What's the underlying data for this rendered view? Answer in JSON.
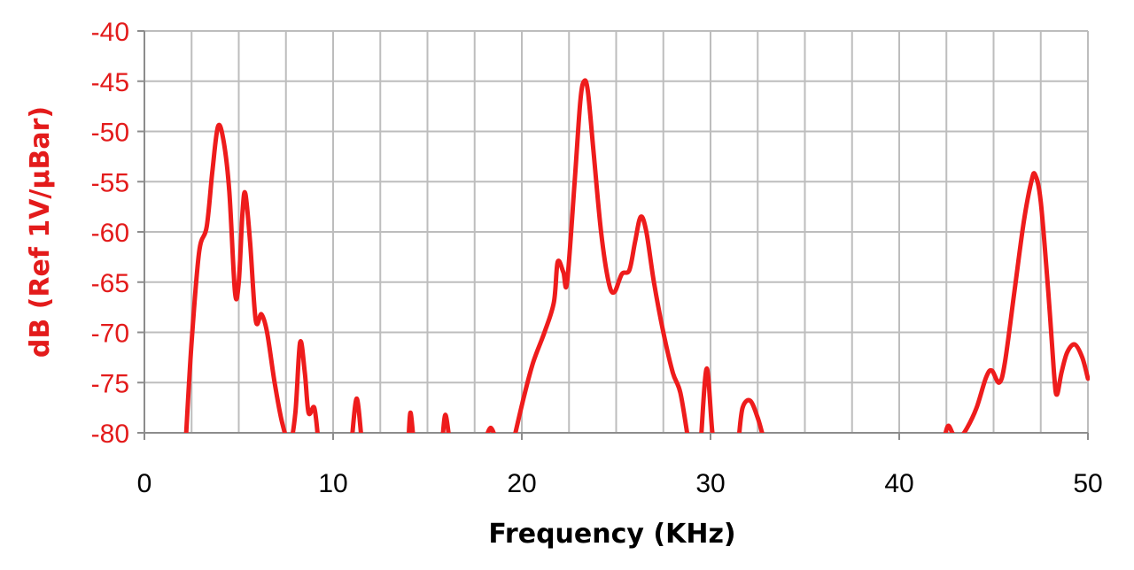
{
  "chart_data": {
    "type": "line",
    "title": "",
    "xlabel": "Frequency (KHz)",
    "ylabel": "dB (Ref 1V/μBar)",
    "xlim": [
      0,
      50
    ],
    "ylim": [
      -80,
      -40
    ],
    "x_ticks": [
      "0",
      "10",
      "20",
      "30",
      "40",
      "50"
    ],
    "y_ticks": [
      "-40",
      "-45",
      "-50",
      "-55",
      "-60",
      "-65",
      "-70",
      "-75",
      "-80"
    ],
    "grid": true,
    "legend": "none",
    "colors": {
      "series": "#ee1c1c",
      "ylabel": "#e31b1b",
      "grid": "#bdbdbd",
      "axis": "#8c8c8c"
    },
    "series": [
      {
        "points": [
          [
            2.2,
            -80.5
          ],
          [
            2.5,
            -71
          ],
          [
            2.9,
            -62
          ],
          [
            3.3,
            -59.5
          ],
          [
            3.6,
            -54
          ],
          [
            3.9,
            -49.5
          ],
          [
            4.2,
            -51
          ],
          [
            4.5,
            -56
          ],
          [
            4.8,
            -66
          ],
          [
            5.0,
            -65
          ],
          [
            5.2,
            -58
          ],
          [
            5.35,
            -56.2
          ],
          [
            5.6,
            -61
          ],
          [
            5.9,
            -68.8
          ],
          [
            6.2,
            -68.2
          ],
          [
            6.5,
            -70
          ],
          [
            6.9,
            -75
          ],
          [
            7.3,
            -79
          ],
          [
            7.7,
            -81
          ],
          [
            8.0,
            -78
          ],
          [
            8.25,
            -71
          ],
          [
            8.5,
            -74
          ],
          [
            8.7,
            -78
          ],
          [
            9.0,
            -77.5
          ],
          [
            9.2,
            -80.5
          ],
          null,
          [
            11.0,
            -80.5
          ],
          [
            11.25,
            -76.6
          ],
          [
            11.5,
            -80.5
          ],
          null,
          [
            14.0,
            -80.5
          ],
          [
            14.1,
            -78
          ],
          [
            14.25,
            -80.5
          ],
          null,
          [
            15.8,
            -80.5
          ],
          [
            15.95,
            -78.2
          ],
          [
            16.15,
            -80.5
          ],
          null,
          [
            18.1,
            -80.5
          ],
          [
            18.35,
            -79.5
          ],
          [
            18.6,
            -80.5
          ],
          null,
          [
            19.6,
            -80.5
          ],
          [
            20.1,
            -76.5
          ],
          [
            20.6,
            -73
          ],
          [
            21.2,
            -70
          ],
          [
            21.7,
            -67
          ],
          [
            21.9,
            -63
          ],
          [
            22.2,
            -64
          ],
          [
            22.4,
            -65
          ],
          [
            22.8,
            -55
          ],
          [
            23.1,
            -47
          ],
          [
            23.3,
            -45
          ],
          [
            23.5,
            -46
          ],
          [
            23.8,
            -52
          ],
          [
            24.2,
            -60
          ],
          [
            24.6,
            -65
          ],
          [
            24.9,
            -66
          ],
          [
            25.3,
            -64.2
          ],
          [
            25.7,
            -63.8
          ],
          [
            26.0,
            -61
          ],
          [
            26.3,
            -58.5
          ],
          [
            26.6,
            -60
          ],
          [
            27.0,
            -65
          ],
          [
            27.5,
            -70
          ],
          [
            28.0,
            -74
          ],
          [
            28.4,
            -76
          ],
          [
            28.8,
            -80.5
          ],
          null,
          [
            29.5,
            -80.5
          ],
          [
            29.8,
            -73.6
          ],
          [
            30.1,
            -80
          ],
          [
            30.3,
            -80.5
          ],
          null,
          [
            31.5,
            -80.5
          ],
          [
            31.7,
            -77.5
          ],
          [
            32.1,
            -76.8
          ],
          [
            32.5,
            -78.5
          ],
          [
            32.8,
            -80.5
          ],
          null,
          [
            42.4,
            -80.5
          ],
          [
            42.6,
            -79.3
          ],
          [
            42.9,
            -80.3
          ],
          [
            43.2,
            -80.5
          ],
          [
            43.6,
            -79.5
          ],
          [
            44.1,
            -77.5
          ],
          [
            44.6,
            -74.5
          ],
          [
            44.9,
            -73.8
          ],
          [
            45.3,
            -75
          ],
          [
            45.6,
            -73
          ],
          [
            46.1,
            -66
          ],
          [
            46.6,
            -59
          ],
          [
            47.0,
            -55
          ],
          [
            47.2,
            -54.3
          ],
          [
            47.5,
            -57
          ],
          [
            47.9,
            -66
          ],
          [
            48.2,
            -74
          ],
          [
            48.35,
            -76.2
          ],
          [
            48.6,
            -74
          ],
          [
            48.9,
            -72
          ],
          [
            49.3,
            -71.2
          ],
          [
            49.7,
            -72.5
          ],
          [
            50.0,
            -74.6
          ]
        ]
      }
    ]
  }
}
